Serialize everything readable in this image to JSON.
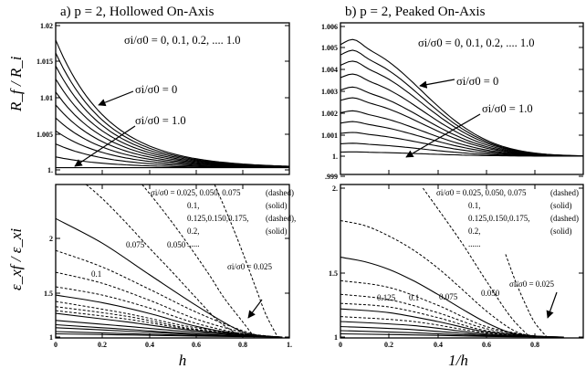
{
  "chart_data": [
    {
      "type": "line",
      "title": "a)  p = 2, Hollowed On-Axis",
      "xlabel": "",
      "ylabel": "R_f / R_i",
      "xlim": [
        0,
        1
      ],
      "ylim": [
        0.998,
        1.02
      ],
      "yticks": [
        "1.02",
        "1.015",
        "1.01",
        "1.005",
        "1."
      ],
      "xticks": [],
      "legend_text": "σi/σ0 = 0, 0.1, 0.2, .... 1.0",
      "annotations": [
        "σi/σ0 = 0",
        "σi/σ0 = 1.0"
      ],
      "series_note": "11 solid curves for σi/σ0 = 0 ... 1.0",
      "series": [
        {
          "sigma_ratio": 0.0,
          "y_at_0": 1.018
        },
        {
          "sigma_ratio": 0.1,
          "y_at_0": 1.0162
        },
        {
          "sigma_ratio": 0.2,
          "y_at_0": 1.0144
        },
        {
          "sigma_ratio": 0.3,
          "y_at_0": 1.0126
        },
        {
          "sigma_ratio": 0.4,
          "y_at_0": 1.0108
        },
        {
          "sigma_ratio": 0.5,
          "y_at_0": 1.009
        },
        {
          "sigma_ratio": 0.6,
          "y_at_0": 1.0072
        },
        {
          "sigma_ratio": 0.7,
          "y_at_0": 1.0054
        },
        {
          "sigma_ratio": 0.8,
          "y_at_0": 1.0036
        },
        {
          "sigma_ratio": 0.9,
          "y_at_0": 1.0018
        },
        {
          "sigma_ratio": 1.0,
          "y_at_0": 1.0003
        }
      ]
    },
    {
      "type": "line",
      "title": "b)  p = 2, Peaked On-Axis",
      "xlabel": "",
      "ylabel": "",
      "xlim": [
        0,
        1
      ],
      "ylim": [
        0.999,
        1.006
      ],
      "yticks": [
        "1.006",
        "1.005",
        "1.004",
        "1.003",
        "1.002",
        "1.001",
        "1.",
        ".999"
      ],
      "xticks": [],
      "legend_text": "σi/σ0 = 0, 0.1, 0.2, .... 1.0",
      "annotations": [
        "σi/σ0 = 0",
        "σi/σ0 = 1.0"
      ],
      "series_note": "11 solid curves peaking near x≈0.05",
      "series": [
        {
          "sigma_ratio": 0.0,
          "y_peak": 1.0054
        },
        {
          "sigma_ratio": 0.1,
          "y_peak": 1.0049
        },
        {
          "sigma_ratio": 0.2,
          "y_peak": 1.0044
        },
        {
          "sigma_ratio": 0.3,
          "y_peak": 1.0038
        },
        {
          "sigma_ratio": 0.4,
          "y_peak": 1.0032
        },
        {
          "sigma_ratio": 0.5,
          "y_peak": 1.0027
        },
        {
          "sigma_ratio": 0.6,
          "y_peak": 1.0021
        },
        {
          "sigma_ratio": 0.7,
          "y_peak": 1.0016
        },
        {
          "sigma_ratio": 0.8,
          "y_peak": 1.0011
        },
        {
          "sigma_ratio": 0.9,
          "y_peak": 1.0006
        },
        {
          "sigma_ratio": 1.0,
          "y_peak": 1.0002
        }
      ]
    },
    {
      "type": "line",
      "title": "",
      "xlabel": "h",
      "ylabel": "ε_xf / ε_xi",
      "xlim": [
        0,
        1
      ],
      "ylim": [
        1,
        2.6
      ],
      "yscale": "log",
      "yticks": [
        "2",
        "1.5",
        "1"
      ],
      "xticks": [
        "0",
        "0.2",
        "0.4",
        "0.6",
        "0.8",
        "1."
      ],
      "legend_lines": [
        [
          "σi/σ0 = 0.025, 0.050, 0.075",
          "(dashed)"
        ],
        [
          "0.1,",
          "(solid)"
        ],
        [
          "0.125,0.150,0.175,",
          "(dashed),"
        ],
        [
          "0.2,",
          "(solid)"
        ],
        [
          "......",
          ""
        ]
      ],
      "curve_labels": [
        "0.1",
        "0.075",
        "0.050",
        "σi/σ0 = 0.025"
      ],
      "series": [
        {
          "sigma_ratio": 0.025,
          "style": "dashed",
          "x": [
            0.68,
            0.74,
            0.8,
            0.86,
            0.9,
            0.95
          ],
          "y": [
            2.6,
            2.12,
            1.7,
            1.34,
            1.15,
            1.0
          ]
        },
        {
          "sigma_ratio": 0.05,
          "style": "dashed",
          "x": [
            0.37,
            0.45,
            0.55,
            0.65,
            0.72,
            0.8,
            0.85
          ],
          "y": [
            2.6,
            2.25,
            1.85,
            1.5,
            1.28,
            1.1,
            1.0
          ]
        },
        {
          "sigma_ratio": 0.075,
          "style": "dashed",
          "x": [
            0.13,
            0.2,
            0.3,
            0.4,
            0.5,
            0.6,
            0.7,
            0.8
          ],
          "y": [
            2.6,
            2.38,
            2.05,
            1.75,
            1.5,
            1.28,
            1.1,
            1.0
          ]
        },
        {
          "sigma_ratio": 0.1,
          "style": "solid",
          "x": [
            0,
            0.2,
            0.4,
            0.6,
            0.75,
            0.85
          ],
          "y": [
            2.1,
            1.8,
            1.48,
            1.22,
            1.07,
            1.0
          ]
        },
        {
          "sigma_ratio": 0.125,
          "style": "dashed",
          "x": [
            0,
            0.2,
            0.4,
            0.6,
            0.8,
            0.9
          ],
          "y": [
            1.72,
            1.55,
            1.35,
            1.17,
            1.04,
            1.0
          ]
        },
        {
          "sigma_ratio": 0.15,
          "style": "dashed",
          "x": [
            0,
            0.2,
            0.4,
            0.6,
            0.8,
            0.92
          ],
          "y": [
            1.5,
            1.4,
            1.26,
            1.12,
            1.03,
            1.0
          ]
        },
        {
          "sigma_ratio": 0.175,
          "style": "dashed",
          "x": [
            0,
            0.2,
            0.4,
            0.6,
            0.8,
            0.93
          ],
          "y": [
            1.37,
            1.3,
            1.2,
            1.09,
            1.02,
            1.0
          ]
        },
        {
          "sigma_ratio": 0.2,
          "style": "solid",
          "x": [
            0,
            0.2,
            0.4,
            0.6,
            0.8,
            0.94
          ],
          "y": [
            1.3,
            1.24,
            1.16,
            1.07,
            1.015,
            1.0
          ]
        },
        {
          "sigma_ratio": 0.225,
          "style": "dashed",
          "x": [
            0,
            0.3,
            0.6,
            0.95
          ],
          "y": [
            1.25,
            1.16,
            1.06,
            1.0
          ]
        },
        {
          "sigma_ratio": 0.25,
          "style": "dashed",
          "x": [
            0,
            0.3,
            0.6,
            0.95
          ],
          "y": [
            1.21,
            1.14,
            1.05,
            1.0
          ]
        },
        {
          "sigma_ratio": 0.275,
          "style": "dashed",
          "x": [
            0,
            0.3,
            0.6,
            0.95
          ],
          "y": [
            1.18,
            1.12,
            1.045,
            1.0
          ]
        },
        {
          "sigma_ratio": 0.3,
          "style": "solid",
          "x": [
            0,
            0.3,
            0.6,
            0.96
          ],
          "y": [
            1.16,
            1.1,
            1.04,
            1.0
          ]
        },
        {
          "sigma_ratio": 0.4,
          "style": "solid",
          "x": [
            0,
            0.3,
            0.6,
            0.96
          ],
          "y": [
            1.11,
            1.07,
            1.03,
            1.0
          ]
        },
        {
          "sigma_ratio": 0.5,
          "style": "solid",
          "x": [
            0,
            0.3,
            0.6,
            0.97
          ],
          "y": [
            1.08,
            1.05,
            1.02,
            1.0
          ]
        },
        {
          "sigma_ratio": 0.6,
          "style": "solid",
          "x": [
            0,
            0.3,
            0.6,
            0.97
          ],
          "y": [
            1.06,
            1.038,
            1.016,
            1.0
          ]
        },
        {
          "sigma_ratio": 0.8,
          "style": "solid",
          "x": [
            0,
            0.3,
            0.6,
            0.97
          ],
          "y": [
            1.035,
            1.022,
            1.01,
            1.0
          ]
        },
        {
          "sigma_ratio": 1.0,
          "style": "solid",
          "x": [
            0,
            0.3,
            0.6,
            0.97
          ],
          "y": [
            1.02,
            1.013,
            1.006,
            1.0
          ]
        }
      ]
    },
    {
      "type": "line",
      "title": "",
      "xlabel": "1/h",
      "ylabel": "",
      "xlim": [
        0,
        1
      ],
      "ylim": [
        1,
        2
      ],
      "yscale": "log",
      "yticks": [
        "2.",
        "1.5",
        "1"
      ],
      "xticks": [
        "0",
        "0.2",
        "0.4",
        "0.6",
        "0.8"
      ],
      "legend_lines": [
        [
          "σi/σ0 = 0.025, 0.050, 0.075",
          "(dashed)"
        ],
        [
          "0.1,",
          "(solid)"
        ],
        [
          "0.125,0.150,0.175,",
          "(dashed)"
        ],
        [
          "0.2,",
          "(solid)"
        ],
        [
          "......",
          ""
        ]
      ],
      "curve_labels": [
        "0.125",
        "0.1",
        "0.075",
        "0.050",
        "σi/σ0 = 0.025"
      ],
      "series": [
        {
          "sigma_ratio": 0.025,
          "style": "dashed",
          "x": [
            0.68,
            0.72,
            0.76,
            0.8,
            0.85
          ],
          "y": [
            1.47,
            1.3,
            1.17,
            1.07,
            1.0
          ]
        },
        {
          "sigma_ratio": 0.05,
          "style": "dashed",
          "x": [
            0.34,
            0.4,
            0.5,
            0.6,
            0.7,
            0.78
          ],
          "y": [
            2.0,
            1.82,
            1.55,
            1.3,
            1.1,
            1.0
          ]
        },
        {
          "sigma_ratio": 0.075,
          "style": "dashed",
          "x": [
            0,
            0.1,
            0.2,
            0.3,
            0.4,
            0.5,
            0.6,
            0.7,
            0.78
          ],
          "y": [
            1.72,
            1.68,
            1.6,
            1.5,
            1.38,
            1.25,
            1.13,
            1.04,
            1.0
          ]
        },
        {
          "sigma_ratio": 0.1,
          "style": "solid",
          "x": [
            0,
            0.1,
            0.2,
            0.3,
            0.4,
            0.5,
            0.6,
            0.7,
            0.8
          ],
          "y": [
            1.45,
            1.42,
            1.37,
            1.3,
            1.22,
            1.14,
            1.07,
            1.02,
            1.0
          ]
        },
        {
          "sigma_ratio": 0.125,
          "style": "dashed",
          "x": [
            0,
            0.2,
            0.4,
            0.6,
            0.82
          ],
          "y": [
            1.3,
            1.26,
            1.16,
            1.05,
            1.0
          ]
        },
        {
          "sigma_ratio": 0.15,
          "style": "dashed",
          "x": [
            0,
            0.2,
            0.4,
            0.6,
            0.84
          ],
          "y": [
            1.22,
            1.19,
            1.12,
            1.04,
            1.0
          ]
        },
        {
          "sigma_ratio": 0.175,
          "style": "dashed",
          "x": [
            0,
            0.2,
            0.4,
            0.6,
            0.85
          ],
          "y": [
            1.17,
            1.15,
            1.095,
            1.03,
            1.0
          ]
        },
        {
          "sigma_ratio": 0.2,
          "style": "solid",
          "x": [
            0,
            0.2,
            0.4,
            0.6,
            0.86
          ],
          "y": [
            1.14,
            1.12,
            1.075,
            1.025,
            1.0
          ]
        },
        {
          "sigma_ratio": 0.25,
          "style": "dashed",
          "x": [
            0,
            0.3,
            0.6,
            0.88
          ],
          "y": [
            1.1,
            1.075,
            1.02,
            1.0
          ]
        },
        {
          "sigma_ratio": 0.3,
          "style": "solid",
          "x": [
            0,
            0.3,
            0.6,
            0.9
          ],
          "y": [
            1.075,
            1.055,
            1.015,
            1.0
          ]
        },
        {
          "sigma_ratio": 0.4,
          "style": "solid",
          "x": [
            0,
            0.3,
            0.6,
            0.9
          ],
          "y": [
            1.05,
            1.035,
            1.01,
            1.0
          ]
        },
        {
          "sigma_ratio": 0.6,
          "style": "solid",
          "x": [
            0,
            0.3,
            0.6,
            0.92
          ],
          "y": [
            1.03,
            1.02,
            1.006,
            1.0
          ]
        },
        {
          "sigma_ratio": 1.0,
          "style": "solid",
          "x": [
            0,
            0.3,
            0.6,
            0.92
          ],
          "y": [
            1.015,
            1.01,
            1.003,
            1.0
          ]
        }
      ]
    }
  ]
}
